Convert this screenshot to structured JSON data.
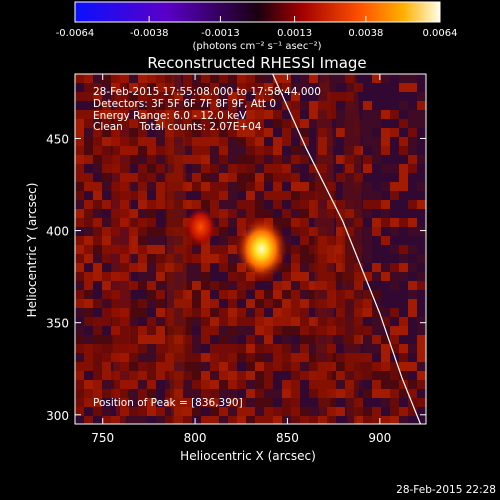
{
  "chart_data": {
    "type": "heatmap",
    "title": "Reconstructed RHESSI Image",
    "xlabel": "Heliocentric X (arcsec)",
    "ylabel": "Heliocentric Y (arcsec)",
    "xlim": [
      735,
      925
    ],
    "ylim": [
      295,
      485
    ],
    "xticks": [
      750,
      800,
      850,
      900
    ],
    "yticks": [
      300,
      350,
      400,
      450
    ],
    "colorbar": {
      "ticks": [
        "-0.0064",
        "-0.0038",
        "-0.0013",
        "0.0013",
        "0.0038",
        "0.0064"
      ],
      "range": [
        -0.0064,
        0.0064
      ],
      "units": "(photons cm⁻² s⁻¹ asec⁻²)"
    },
    "peak": {
      "x": 836,
      "y": 390
    },
    "secondary_source": {
      "x": 803,
      "y": 402
    },
    "limb_curve": [
      [
        842,
        485
      ],
      [
        860,
        445
      ],
      [
        880,
        405
      ],
      [
        900,
        355
      ],
      [
        912,
        320
      ],
      [
        922,
        295
      ]
    ],
    "info_lines": [
      "28-Feb-2015 17:55:08.000 to 17:58:44.000",
      "Detectors: 3F 5F 6F 7F 8F 9F, Att 0",
      "Energy Range: 6.0 - 12.0 keV",
      "Clean     Total counts: 2.07E+04"
    ],
    "peak_label": "Position of Peak = [836,390]",
    "timestamp": "28-Feb-2015 22:28"
  }
}
